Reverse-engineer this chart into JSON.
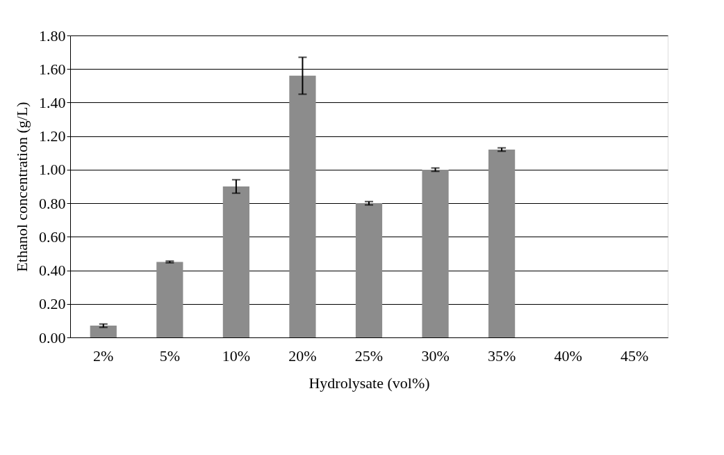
{
  "chart_data": {
    "type": "bar",
    "xlabel": "Hydrolysate (vol%)",
    "ylabel": "Ethanol concentration (g/L)",
    "categories": [
      "2%",
      "5%",
      "10%",
      "20%",
      "25%",
      "30%",
      "35%",
      "40%",
      "45%"
    ],
    "values": [
      0.07,
      0.45,
      0.9,
      1.56,
      0.8,
      1.0,
      1.12,
      0,
      0
    ],
    "errors": [
      0.01,
      0.005,
      0.04,
      0.11,
      0.01,
      0.01,
      0.01,
      null,
      null
    ],
    "color": "#8c8c8c",
    "ylim": [
      0,
      1.8
    ],
    "yticks": [
      {
        "value": 0,
        "label": "0.00"
      },
      {
        "value": 0.2,
        "label": "0.20"
      },
      {
        "value": 0.4,
        "label": "0.40"
      },
      {
        "value": 0.6,
        "label": "0.60"
      },
      {
        "value": 0.8,
        "label": "0.80"
      },
      {
        "value": 1.0,
        "label": "1.00"
      },
      {
        "value": 1.2,
        "label": "1.20"
      },
      {
        "value": 1.4,
        "label": "1.40"
      },
      {
        "value": 1.6,
        "label": "1.60"
      },
      {
        "value": 1.8,
        "label": "1.80"
      }
    ],
    "grid": "y"
  }
}
